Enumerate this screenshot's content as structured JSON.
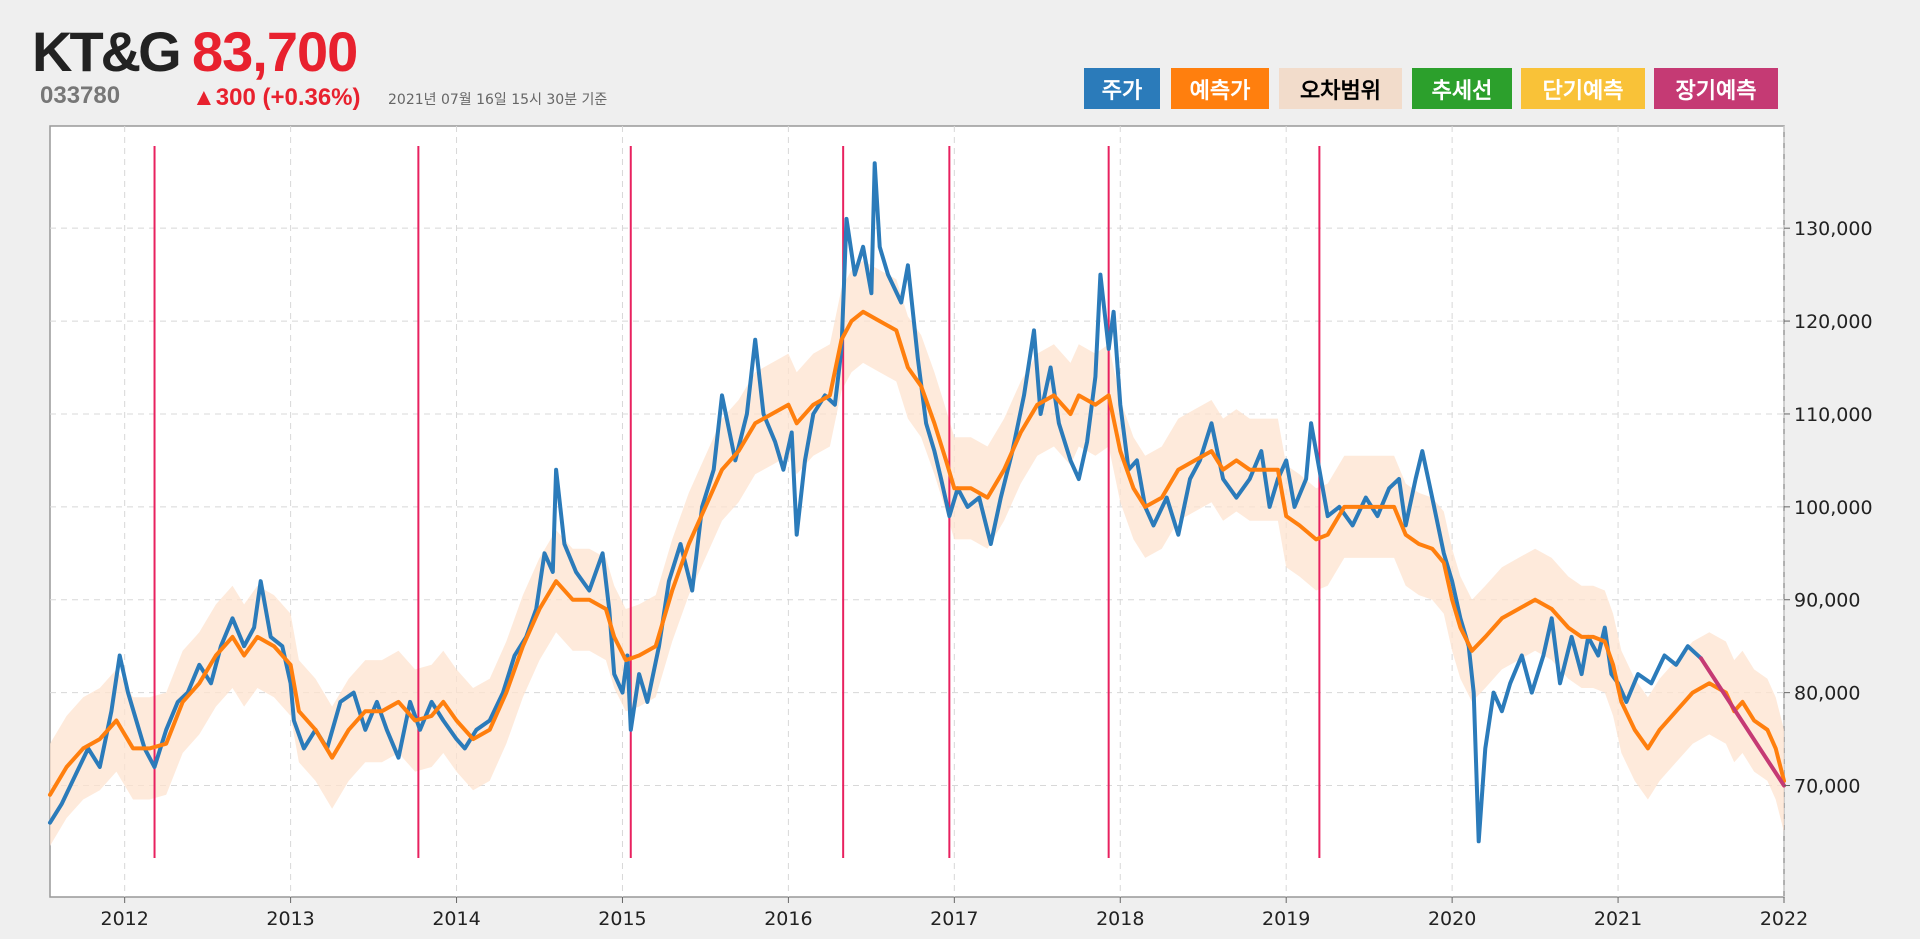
{
  "header": {
    "name": "KT&G",
    "price": "83,700",
    "code": "033780",
    "change": "▲300 (+0.36%)",
    "asof": "2021년 07월 16일 15시 30분 기준"
  },
  "legend": [
    {
      "label": "주가",
      "bg": "#2b7bba",
      "fg": "#ffffff"
    },
    {
      "label": "예측가",
      "bg": "#ff7f0e",
      "fg": "#ffffff"
    },
    {
      "label": "오차범위",
      "bg": "#f2dccb",
      "fg": "#000000"
    },
    {
      "label": "추세선",
      "bg": "#2ca02c",
      "fg": "#ffffff"
    },
    {
      "label": "단기예측",
      "bg": "#f9c238",
      "fg": "#ffffff"
    },
    {
      "label": "장기예측",
      "bg": "#c53a74",
      "fg": "#ffffff"
    }
  ],
  "chart_data": {
    "type": "line",
    "xlim": [
      2011.55,
      2022.0
    ],
    "ylim": [
      58000,
      141000
    ],
    "x_ticks": [
      2012,
      2013,
      2014,
      2015,
      2016,
      2017,
      2018,
      2019,
      2020,
      2021,
      2022
    ],
    "x_tick_labels": [
      "2012",
      "2013",
      "2014",
      "2015",
      "2016",
      "2017",
      "2018",
      "2019",
      "2020",
      "2021",
      "2022"
    ],
    "y_ticks": [
      70000,
      80000,
      90000,
      100000,
      110000,
      120000,
      130000
    ],
    "y_tick_labels": [
      "70,000",
      "80,000",
      "90,000",
      "100,000",
      "110,000",
      "120,000",
      "130,000"
    ],
    "grid": true,
    "event_lines": [
      2012.18,
      2013.77,
      2015.05,
      2016.33,
      2016.97,
      2017.93,
      2019.2
    ],
    "price": {
      "name": "주가",
      "color": "#2b7bba",
      "points": [
        [
          2011.55,
          66000
        ],
        [
          2011.62,
          68000
        ],
        [
          2011.7,
          71000
        ],
        [
          2011.78,
          74000
        ],
        [
          2011.85,
          72000
        ],
        [
          2011.92,
          78000
        ],
        [
          2011.97,
          84000
        ],
        [
          2012.02,
          80000
        ],
        [
          2012.07,
          77000
        ],
        [
          2012.12,
          74000
        ],
        [
          2012.18,
          72000
        ],
        [
          2012.25,
          76000
        ],
        [
          2012.32,
          79000
        ],
        [
          2012.38,
          80000
        ],
        [
          2012.45,
          83000
        ],
        [
          2012.52,
          81000
        ],
        [
          2012.58,
          85000
        ],
        [
          2012.65,
          88000
        ],
        [
          2012.72,
          85000
        ],
        [
          2012.78,
          87000
        ],
        [
          2012.82,
          92000
        ],
        [
          2012.88,
          86000
        ],
        [
          2012.95,
          85000
        ],
        [
          2013.0,
          81000
        ],
        [
          2013.02,
          77000
        ],
        [
          2013.08,
          74000
        ],
        [
          2013.15,
          76000
        ],
        [
          2013.22,
          74000
        ],
        [
          2013.3,
          79000
        ],
        [
          2013.38,
          80000
        ],
        [
          2013.45,
          76000
        ],
        [
          2013.52,
          79000
        ],
        [
          2013.58,
          76000
        ],
        [
          2013.65,
          73000
        ],
        [
          2013.72,
          79000
        ],
        [
          2013.78,
          76000
        ],
        [
          2013.85,
          79000
        ],
        [
          2013.92,
          77000
        ],
        [
          2014.0,
          75000
        ],
        [
          2014.05,
          74000
        ],
        [
          2014.12,
          76000
        ],
        [
          2014.2,
          77000
        ],
        [
          2014.28,
          80000
        ],
        [
          2014.35,
          84000
        ],
        [
          2014.42,
          86000
        ],
        [
          2014.48,
          89000
        ],
        [
          2014.53,
          95000
        ],
        [
          2014.58,
          93000
        ],
        [
          2014.6,
          104000
        ],
        [
          2014.65,
          96000
        ],
        [
          2014.72,
          93000
        ],
        [
          2014.8,
          91000
        ],
        [
          2014.88,
          95000
        ],
        [
          2014.92,
          89000
        ],
        [
          2014.95,
          82000
        ],
        [
          2015.0,
          80000
        ],
        [
          2015.03,
          84000
        ],
        [
          2015.05,
          76000
        ],
        [
          2015.1,
          82000
        ],
        [
          2015.15,
          79000
        ],
        [
          2015.22,
          85000
        ],
        [
          2015.28,
          92000
        ],
        [
          2015.35,
          96000
        ],
        [
          2015.42,
          91000
        ],
        [
          2015.48,
          100000
        ],
        [
          2015.55,
          104000
        ],
        [
          2015.6,
          112000
        ],
        [
          2015.68,
          105000
        ],
        [
          2015.75,
          110000
        ],
        [
          2015.8,
          118000
        ],
        [
          2015.85,
          110000
        ],
        [
          2015.92,
          107000
        ],
        [
          2015.97,
          104000
        ],
        [
          2016.02,
          108000
        ],
        [
          2016.05,
          97000
        ],
        [
          2016.1,
          105000
        ],
        [
          2016.15,
          110000
        ],
        [
          2016.22,
          112000
        ],
        [
          2016.28,
          111000
        ],
        [
          2016.32,
          117000
        ],
        [
          2016.35,
          131000
        ],
        [
          2016.4,
          125000
        ],
        [
          2016.45,
          128000
        ],
        [
          2016.5,
          123000
        ],
        [
          2016.52,
          137000
        ],
        [
          2016.55,
          128000
        ],
        [
          2016.6,
          125000
        ],
        [
          2016.68,
          122000
        ],
        [
          2016.72,
          126000
        ],
        [
          2016.78,
          116000
        ],
        [
          2016.83,
          109000
        ],
        [
          2016.88,
          106000
        ],
        [
          2016.92,
          103000
        ],
        [
          2016.97,
          99000
        ],
        [
          2017.02,
          102000
        ],
        [
          2017.08,
          100000
        ],
        [
          2017.15,
          101000
        ],
        [
          2017.22,
          96000
        ],
        [
          2017.28,
          101000
        ],
        [
          2017.35,
          106000
        ],
        [
          2017.42,
          112000
        ],
        [
          2017.48,
          119000
        ],
        [
          2017.52,
          110000
        ],
        [
          2017.58,
          115000
        ],
        [
          2017.63,
          109000
        ],
        [
          2017.7,
          105000
        ],
        [
          2017.75,
          103000
        ],
        [
          2017.8,
          107000
        ],
        [
          2017.85,
          114000
        ],
        [
          2017.88,
          125000
        ],
        [
          2017.93,
          117000
        ],
        [
          2017.96,
          121000
        ],
        [
          2018.0,
          111000
        ],
        [
          2018.05,
          104000
        ],
        [
          2018.1,
          105000
        ],
        [
          2018.15,
          100000
        ],
        [
          2018.2,
          98000
        ],
        [
          2018.28,
          101000
        ],
        [
          2018.35,
          97000
        ],
        [
          2018.42,
          103000
        ],
        [
          2018.48,
          105000
        ],
        [
          2018.55,
          109000
        ],
        [
          2018.62,
          103000
        ],
        [
          2018.7,
          101000
        ],
        [
          2018.78,
          103000
        ],
        [
          2018.85,
          106000
        ],
        [
          2018.9,
          100000
        ],
        [
          2018.95,
          103000
        ],
        [
          2019.0,
          105000
        ],
        [
          2019.05,
          100000
        ],
        [
          2019.12,
          103000
        ],
        [
          2019.15,
          109000
        ],
        [
          2019.2,
          104000
        ],
        [
          2019.25,
          99000
        ],
        [
          2019.32,
          100000
        ],
        [
          2019.4,
          98000
        ],
        [
          2019.48,
          101000
        ],
        [
          2019.55,
          99000
        ],
        [
          2019.62,
          102000
        ],
        [
          2019.68,
          103000
        ],
        [
          2019.72,
          98000
        ],
        [
          2019.78,
          103000
        ],
        [
          2019.82,
          106000
        ],
        [
          2019.88,
          101000
        ],
        [
          2019.95,
          95000
        ],
        [
          2020.0,
          92000
        ],
        [
          2020.05,
          88000
        ],
        [
          2020.1,
          85000
        ],
        [
          2020.13,
          80000
        ],
        [
          2020.16,
          64000
        ],
        [
          2020.2,
          74000
        ],
        [
          2020.25,
          80000
        ],
        [
          2020.3,
          78000
        ],
        [
          2020.35,
          81000
        ],
        [
          2020.42,
          84000
        ],
        [
          2020.48,
          80000
        ],
        [
          2020.55,
          84000
        ],
        [
          2020.6,
          88000
        ],
        [
          2020.65,
          81000
        ],
        [
          2020.72,
          86000
        ],
        [
          2020.78,
          82000
        ],
        [
          2020.82,
          86000
        ],
        [
          2020.88,
          84000
        ],
        [
          2020.92,
          87000
        ],
        [
          2020.96,
          82000
        ],
        [
          2021.0,
          81000
        ],
        [
          2021.05,
          79000
        ],
        [
          2021.12,
          82000
        ],
        [
          2021.2,
          81000
        ],
        [
          2021.28,
          84000
        ],
        [
          2021.35,
          83000
        ],
        [
          2021.42,
          85000
        ],
        [
          2021.5,
          83700
        ]
      ]
    },
    "forecast": {
      "name": "예측가",
      "color": "#ff7f0e",
      "points": [
        [
          2011.55,
          69000
        ],
        [
          2011.65,
          72000
        ],
        [
          2011.75,
          74000
        ],
        [
          2011.85,
          75000
        ],
        [
          2011.95,
          77000
        ],
        [
          2012.05,
          74000
        ],
        [
          2012.15,
          74000
        ],
        [
          2012.25,
          74500
        ],
        [
          2012.35,
          79000
        ],
        [
          2012.45,
          81000
        ],
        [
          2012.55,
          84000
        ],
        [
          2012.65,
          86000
        ],
        [
          2012.72,
          84000
        ],
        [
          2012.8,
          86000
        ],
        [
          2012.9,
          85000
        ],
        [
          2013.0,
          83000
        ],
        [
          2013.05,
          78000
        ],
        [
          2013.15,
          76000
        ],
        [
          2013.25,
          73000
        ],
        [
          2013.35,
          76000
        ],
        [
          2013.45,
          78000
        ],
        [
          2013.55,
          78000
        ],
        [
          2013.65,
          79000
        ],
        [
          2013.75,
          77000
        ],
        [
          2013.85,
          77500
        ],
        [
          2013.92,
          79000
        ],
        [
          2014.0,
          77000
        ],
        [
          2014.1,
          75000
        ],
        [
          2014.2,
          76000
        ],
        [
          2014.3,
          80000
        ],
        [
          2014.4,
          85000
        ],
        [
          2014.5,
          89000
        ],
        [
          2014.6,
          92000
        ],
        [
          2014.7,
          90000
        ],
        [
          2014.8,
          90000
        ],
        [
          2014.9,
          89000
        ],
        [
          2014.95,
          86000
        ],
        [
          2015.02,
          83500
        ],
        [
          2015.1,
          84000
        ],
        [
          2015.2,
          85000
        ],
        [
          2015.3,
          91000
        ],
        [
          2015.4,
          96000
        ],
        [
          2015.5,
          100000
        ],
        [
          2015.6,
          104000
        ],
        [
          2015.7,
          106000
        ],
        [
          2015.8,
          109000
        ],
        [
          2015.9,
          110000
        ],
        [
          2016.0,
          111000
        ],
        [
          2016.05,
          109000
        ],
        [
          2016.15,
          111000
        ],
        [
          2016.25,
          112000
        ],
        [
          2016.32,
          118000
        ],
        [
          2016.38,
          120000
        ],
        [
          2016.45,
          121000
        ],
        [
          2016.55,
          120000
        ],
        [
          2016.65,
          119000
        ],
        [
          2016.72,
          115000
        ],
        [
          2016.8,
          113000
        ],
        [
          2016.88,
          109000
        ],
        [
          2016.95,
          105000
        ],
        [
          2017.0,
          102000
        ],
        [
          2017.1,
          102000
        ],
        [
          2017.2,
          101000
        ],
        [
          2017.3,
          104000
        ],
        [
          2017.4,
          108000
        ],
        [
          2017.5,
          111000
        ],
        [
          2017.6,
          112000
        ],
        [
          2017.7,
          110000
        ],
        [
          2017.75,
          112000
        ],
        [
          2017.85,
          111000
        ],
        [
          2017.93,
          112000
        ],
        [
          2018.0,
          106000
        ],
        [
          2018.08,
          102000
        ],
        [
          2018.15,
          100000
        ],
        [
          2018.25,
          101000
        ],
        [
          2018.35,
          104000
        ],
        [
          2018.45,
          105000
        ],
        [
          2018.55,
          106000
        ],
        [
          2018.62,
          104000
        ],
        [
          2018.7,
          105000
        ],
        [
          2018.78,
          104000
        ],
        [
          2018.85,
          104000
        ],
        [
          2018.95,
          104000
        ],
        [
          2019.0,
          99000
        ],
        [
          2019.08,
          98000
        ],
        [
          2019.18,
          96500
        ],
        [
          2019.25,
          97000
        ],
        [
          2019.35,
          100000
        ],
        [
          2019.45,
          100000
        ],
        [
          2019.55,
          100000
        ],
        [
          2019.65,
          100000
        ],
        [
          2019.72,
          97000
        ],
        [
          2019.8,
          96000
        ],
        [
          2019.88,
          95500
        ],
        [
          2019.95,
          94000
        ],
        [
          2020.0,
          90000
        ],
        [
          2020.05,
          87000
        ],
        [
          2020.12,
          84500
        ],
        [
          2020.2,
          86000
        ],
        [
          2020.3,
          88000
        ],
        [
          2020.4,
          89000
        ],
        [
          2020.5,
          90000
        ],
        [
          2020.6,
          89000
        ],
        [
          2020.7,
          87000
        ],
        [
          2020.78,
          86000
        ],
        [
          2020.85,
          86000
        ],
        [
          2020.92,
          85500
        ],
        [
          2020.97,
          83000
        ],
        [
          2021.02,
          79000
        ],
        [
          2021.1,
          76000
        ],
        [
          2021.18,
          74000
        ],
        [
          2021.25,
          76000
        ],
        [
          2021.35,
          78000
        ],
        [
          2021.45,
          80000
        ],
        [
          2021.55,
          81000
        ],
        [
          2021.65,
          80000
        ],
        [
          2021.7,
          78000
        ],
        [
          2021.75,
          79000
        ],
        [
          2021.82,
          77000
        ],
        [
          2021.9,
          76000
        ],
        [
          2021.95,
          74000
        ],
        [
          2022.0,
          70500
        ]
      ]
    },
    "error_band": {
      "name": "오차범위",
      "color": "#fde3cf",
      "offset": 5500
    },
    "long_term": {
      "name": "장기예측",
      "color": "#c53a74",
      "points": [
        [
          2021.5,
          83700
        ],
        [
          2022.0,
          70000
        ]
      ]
    }
  }
}
